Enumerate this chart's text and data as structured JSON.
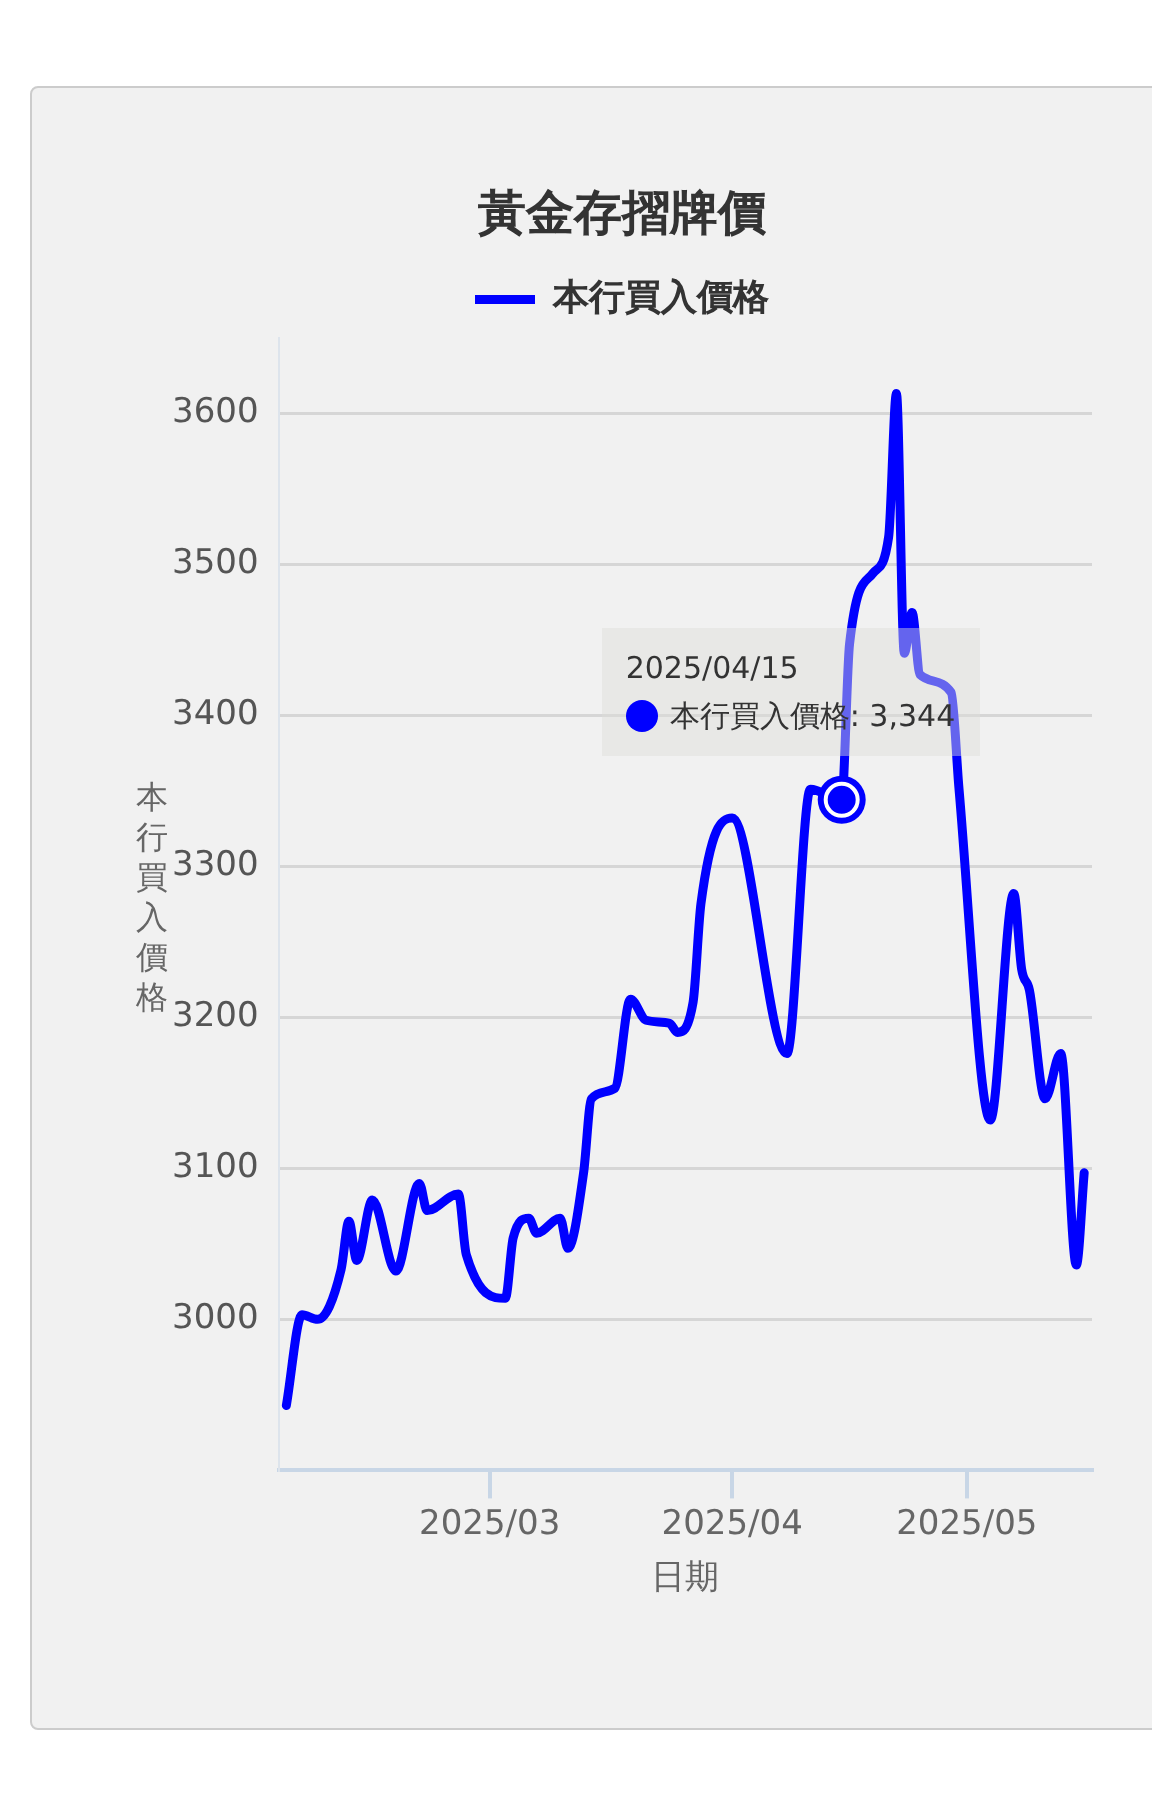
{
  "chart_data": {
    "type": "line",
    "title": "黃金存摺牌價",
    "xlabel": "日期",
    "ylabel": "本行買入價格",
    "x": [
      "2025-02-03",
      "2025-02-05",
      "2025-02-07",
      "2025-02-10",
      "2025-02-11",
      "2025-02-12",
      "2025-02-14",
      "2025-02-17",
      "2025-02-20",
      "2025-02-21",
      "2025-02-25",
      "2025-02-26",
      "2025-03-03",
      "2025-03-04",
      "2025-03-06",
      "2025-03-07",
      "2025-03-10",
      "2025-03-11",
      "2025-03-13",
      "2025-03-14",
      "2025-03-17",
      "2025-03-19",
      "2025-03-21",
      "2025-03-24",
      "2025-03-25",
      "2025-03-27",
      "2025-03-28",
      "2025-04-01",
      "2025-04-08",
      "2025-04-11",
      "2025-04-15",
      "2025-04-16",
      "2025-04-19",
      "2025-04-21",
      "2025-04-22",
      "2025-04-23",
      "2025-04-24",
      "2025-04-25",
      "2025-04-29",
      "2025-04-30",
      "2025-05-04",
      "2025-05-07",
      "2025-05-08",
      "2025-05-09",
      "2025-05-11",
      "2025-05-13",
      "2025-05-15",
      "2025-05-16"
    ],
    "series": [
      {
        "name": "本行買入價格",
        "color": "#0000ff",
        "values": [
          2943,
          3003,
          3000,
          3033,
          3065,
          3039,
          3079,
          3032,
          3090,
          3072,
          3083,
          3043,
          3014,
          3054,
          3067,
          3057,
          3067,
          3047,
          3097,
          3146,
          3153,
          3212,
          3198,
          3196,
          3190,
          3210,
          3275,
          3332,
          3176,
          3351,
          3344,
          3447,
          3494,
          3518,
          3613,
          3441,
          3468,
          3427,
          3415,
          3351,
          3132,
          3282,
          3232,
          3218,
          3146,
          3176,
          3036,
          3097
        ]
      }
    ],
    "xlim": [
      "2025-02-02",
      "2025-05-17"
    ],
    "xticks": [
      {
        "value": "2025-03-01",
        "label": "2025/03"
      },
      {
        "value": "2025-04-01",
        "label": "2025/04"
      },
      {
        "value": "2025-05-01",
        "label": "2025/05"
      }
    ],
    "ylim": [
      2900,
      3650
    ],
    "yticks": [
      3000,
      3100,
      3200,
      3300,
      3400,
      3500,
      3600
    ],
    "grid": "y",
    "legend": "top",
    "marker": "none",
    "line_style": "solid",
    "annotations": [
      "2025/04/15",
      {
        "text": "本行買入價格: 3,344",
        "x": "2025-04-15",
        "y": 3344
      }
    ]
  }
}
